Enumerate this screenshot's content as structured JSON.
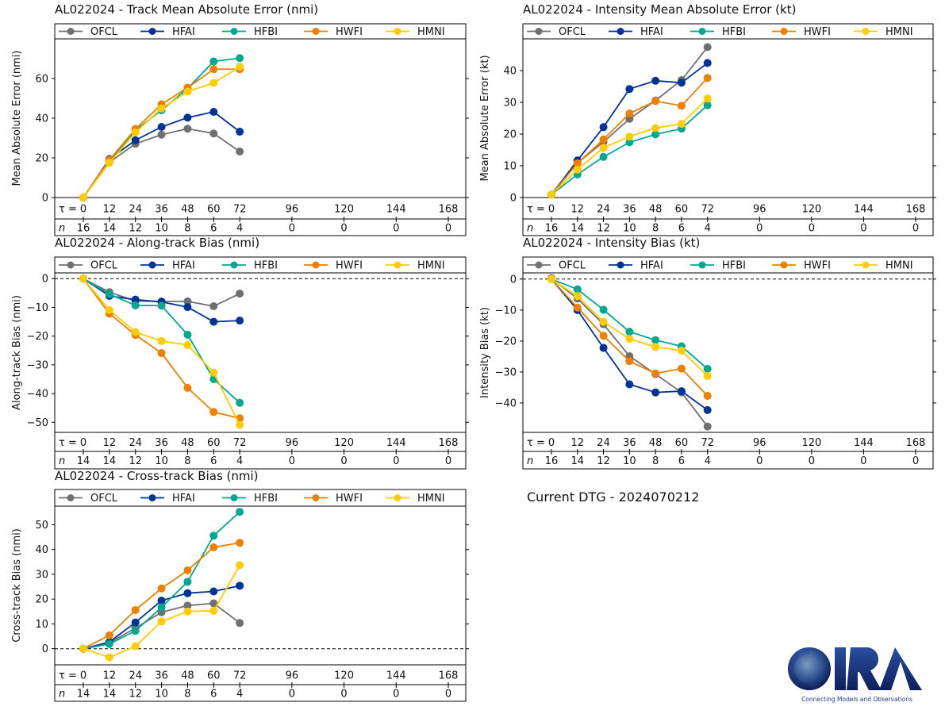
{
  "dtg_label": "Current DTG - 2024070212",
  "logo": {
    "name": "CIRA",
    "tagline": "Connecting Models and Observations"
  },
  "chart_data": [
    {
      "id": "track-mae",
      "type": "line",
      "title": "AL022024 - Track Mean Absolute Error (nmi)",
      "ylabel": "Mean Absolute Error (nmi)",
      "ylim": [
        0,
        80
      ],
      "yticks": [
        0,
        20,
        40,
        60
      ],
      "zero_line": false,
      "x": [
        0,
        12,
        24,
        36,
        48,
        60,
        72
      ],
      "tau_ticks": [
        0,
        12,
        24,
        36,
        48,
        60,
        72,
        96,
        120,
        144,
        168
      ],
      "n_counts": [
        16,
        14,
        12,
        10,
        8,
        6,
        4,
        0,
        0,
        0,
        0
      ],
      "series": [
        {
          "name": "OFCL",
          "color": "#707070",
          "values": [
            0,
            17.8,
            27.1,
            31.7,
            34.7,
            32.3,
            23.2
          ]
        },
        {
          "name": "HFAI",
          "color": "#003399",
          "values": [
            0,
            19.4,
            28.9,
            35.6,
            40.3,
            43.2,
            33.2
          ]
        },
        {
          "name": "HFBI",
          "color": "#00a88f",
          "values": [
            0,
            18.3,
            34.0,
            44.0,
            55.0,
            68.6,
            70.3
          ]
        },
        {
          "name": "HWFI",
          "color": "#ee7f00",
          "values": [
            0,
            19.0,
            34.6,
            47.0,
            55.4,
            64.7,
            64.7
          ]
        },
        {
          "name": "HMNI",
          "color": "#ffcc00",
          "values": [
            0,
            17.5,
            32.8,
            44.9,
            53.4,
            57.8,
            65.9
          ]
        }
      ]
    },
    {
      "id": "intensity-mae",
      "type": "line",
      "title": "AL022024 - Intensity Mean Absolute Error (kt)",
      "ylabel": "Mean Absolute Error (kt)",
      "ylim": [
        0,
        50
      ],
      "yticks": [
        0,
        10,
        20,
        30,
        40
      ],
      "zero_line": false,
      "x": [
        0,
        12,
        24,
        36,
        48,
        60,
        72
      ],
      "tau_ticks": [
        0,
        12,
        24,
        36,
        48,
        60,
        72,
        96,
        120,
        144,
        168
      ],
      "n_counts": [
        16,
        14,
        12,
        10,
        8,
        6,
        4,
        0,
        0,
        0,
        0
      ],
      "series": [
        {
          "name": "OFCL",
          "color": "#707070",
          "values": [
            0.9,
            10.9,
            17.5,
            24.8,
            30.6,
            37.0,
            47.4
          ]
        },
        {
          "name": "HFAI",
          "color": "#003399",
          "values": [
            0.9,
            11.7,
            22.2,
            34.2,
            36.8,
            36.2,
            42.4
          ]
        },
        {
          "name": "HFBI",
          "color": "#00a88f",
          "values": [
            0.9,
            7.3,
            12.8,
            17.4,
            19.9,
            21.7,
            29.1
          ]
        },
        {
          "name": "HWFI",
          "color": "#ee7f00",
          "values": [
            0.9,
            10.8,
            18.3,
            26.5,
            30.4,
            28.9,
            37.7
          ]
        },
        {
          "name": "HMNI",
          "color": "#ffcc00",
          "values": [
            0.9,
            8.8,
            15.7,
            19.2,
            21.9,
            23.2,
            31.2
          ]
        }
      ]
    },
    {
      "id": "along-track-bias",
      "type": "line",
      "title": "AL022024 - Along-track Bias (nmi)",
      "ylabel": "Along-track Bias (nmi)",
      "ylim": [
        -53.5,
        2
      ],
      "yticks": [
        0,
        -10,
        -20,
        -30,
        -40,
        -50
      ],
      "zero_line": true,
      "x": [
        0,
        12,
        24,
        36,
        48,
        60,
        72
      ],
      "tau_ticks": [
        0,
        12,
        24,
        36,
        48,
        60,
        72,
        96,
        120,
        144,
        168
      ],
      "n_counts": [
        14,
        14,
        12,
        10,
        8,
        6,
        4,
        0,
        0,
        0,
        0
      ],
      "series": [
        {
          "name": "OFCL",
          "color": "#707070",
          "values": [
            0,
            -4.7,
            -7.8,
            -7.9,
            -7.9,
            -9.6,
            -5.2
          ]
        },
        {
          "name": "HFAI",
          "color": "#003399",
          "values": [
            0,
            -6.0,
            -7.3,
            -8.1,
            -9.9,
            -15.0,
            -14.6
          ]
        },
        {
          "name": "HFBI",
          "color": "#00a88f",
          "values": [
            0,
            -5.4,
            -9.3,
            -9.4,
            -19.5,
            -35.0,
            -43.2
          ]
        },
        {
          "name": "HWFI",
          "color": "#ee7f00",
          "values": [
            0,
            -12.2,
            -19.6,
            -25.9,
            -38.0,
            -46.4,
            -48.6
          ]
        },
        {
          "name": "HMNI",
          "color": "#ffcc00",
          "values": [
            0,
            -10.9,
            -18.6,
            -21.7,
            -23.1,
            -32.7,
            -50.9
          ]
        }
      ]
    },
    {
      "id": "intensity-bias",
      "type": "line",
      "title": "AL022024 - Intensity Bias (kt)",
      "ylabel": "Intensity Bias (kt)",
      "ylim": [
        -49.5,
        2
      ],
      "yticks": [
        0,
        -10,
        -20,
        -30,
        -40
      ],
      "zero_line": true,
      "x": [
        0,
        12,
        24,
        36,
        48,
        60,
        72
      ],
      "tau_ticks": [
        0,
        12,
        24,
        36,
        48,
        60,
        72,
        96,
        120,
        144,
        168
      ],
      "n_counts": [
        16,
        14,
        12,
        10,
        8,
        6,
        4,
        0,
        0,
        0,
        0
      ],
      "series": [
        {
          "name": "OFCL",
          "color": "#707070",
          "values": [
            0.3,
            -6.3,
            -14.6,
            -24.9,
            -30.7,
            -36.6,
            -47.6
          ]
        },
        {
          "name": "HFAI",
          "color": "#003399",
          "values": [
            0,
            -10.0,
            -22.2,
            -34.0,
            -36.6,
            -36.2,
            -42.3
          ]
        },
        {
          "name": "HFBI",
          "color": "#00a88f",
          "values": [
            0,
            -3.3,
            -9.9,
            -17.0,
            -19.7,
            -21.7,
            -29.0
          ]
        },
        {
          "name": "HWFI",
          "color": "#ee7f00",
          "values": [
            0,
            -9.2,
            -18.3,
            -26.5,
            -30.5,
            -28.9,
            -37.7
          ]
        },
        {
          "name": "HMNI",
          "color": "#ffcc00",
          "values": [
            0,
            -5.5,
            -13.8,
            -19.3,
            -21.9,
            -23.1,
            -31.3
          ]
        }
      ]
    },
    {
      "id": "cross-track-bias",
      "type": "line",
      "title": "AL022024 - Cross-track Bias (nmi)",
      "ylabel": "Cross-track Bias (nmi)",
      "ylim": [
        -6.5,
        57.5
      ],
      "yticks": [
        0,
        10,
        20,
        30,
        40,
        50
      ],
      "zero_line": true,
      "x": [
        0,
        12,
        24,
        36,
        48,
        60,
        72
      ],
      "tau_ticks": [
        0,
        12,
        24,
        36,
        48,
        60,
        72,
        96,
        120,
        144,
        168
      ],
      "n_counts": [
        14,
        14,
        12,
        10,
        8,
        6,
        4,
        0,
        0,
        0,
        0
      ],
      "series": [
        {
          "name": "OFCL",
          "color": "#707070",
          "values": [
            0,
            2.4,
            8.3,
            14.7,
            17.4,
            18.3,
            10.4
          ]
        },
        {
          "name": "HFAI",
          "color": "#003399",
          "values": [
            0,
            2.7,
            10.6,
            19.4,
            22.4,
            23.1,
            25.4
          ]
        },
        {
          "name": "HFBI",
          "color": "#00a88f",
          "values": [
            0,
            1.9,
            7.2,
            16.7,
            27.0,
            45.6,
            55.2
          ]
        },
        {
          "name": "HWFI",
          "color": "#ee7f00",
          "values": [
            0,
            5.4,
            15.6,
            24.3,
            31.6,
            40.9,
            42.7
          ]
        },
        {
          "name": "HMNI",
          "color": "#ffcc00",
          "values": [
            0,
            -3.5,
            1.0,
            11.0,
            15.0,
            15.3,
            33.7
          ]
        }
      ]
    }
  ]
}
